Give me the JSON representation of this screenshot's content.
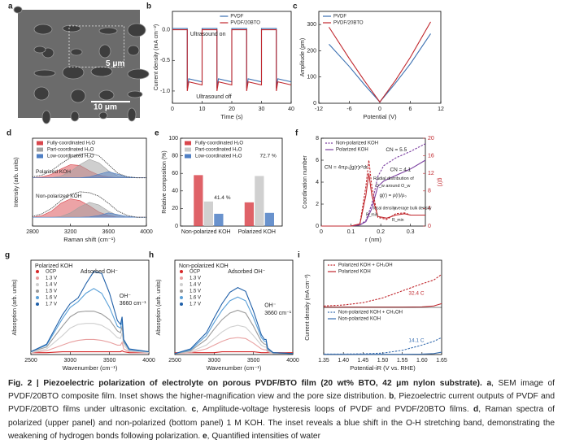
{
  "chart_data": [
    {
      "panel": "a",
      "type": "image",
      "annotations": [
        "5 μm",
        "10 μm"
      ]
    },
    {
      "panel": "b",
      "type": "line",
      "xlabel": "Time (s)",
      "ylabel": "Current density (mA cm⁻²)",
      "xlim": [
        0,
        40
      ],
      "xticks": [
        0,
        10,
        20,
        30,
        40
      ],
      "ylim": [
        -1.2,
        0.3
      ],
      "yticks": [
        {
          "value": -1,
          "label": "-1.0"
        },
        -0.5,
        {
          "value": 0,
          "label": "0.0"
        }
      ],
      "legend": "upper-right",
      "x": [
        0,
        5,
        5,
        5.5,
        10,
        10,
        15,
        15,
        15.5,
        20,
        20,
        25,
        25,
        25.5,
        30,
        30,
        35,
        35,
        35.5,
        40
      ],
      "series": [
        {
          "name": "PVDF",
          "color": "#3a6fb0",
          "values": [
            0.02,
            0.02,
            -0.95,
            -0.8,
            -0.85,
            0.02,
            0.02,
            -0.95,
            -0.8,
            -0.85,
            0.02,
            0.02,
            -0.95,
            -0.8,
            -0.85,
            0.02,
            0.02,
            -0.95,
            -0.8,
            -0.85
          ]
        },
        {
          "name": "PVDF/20BTO",
          "color": "#c0272d",
          "values": [
            0,
            0,
            -1.0,
            -0.85,
            -0.9,
            0,
            0,
            -1.0,
            -0.85,
            -0.9,
            0,
            0,
            -1.0,
            -0.85,
            -0.9,
            0,
            0,
            -1.0,
            -0.85,
            -0.9
          ]
        }
      ],
      "annotations": [
        "Ultrasound on",
        "Ultrasound off"
      ]
    },
    {
      "panel": "c",
      "type": "line",
      "xlabel": "Potential (V)",
      "ylabel": "Amplitude (pm)",
      "xlim": [
        -12,
        12
      ],
      "xticks": [
        -12,
        -6,
        0,
        6,
        12
      ],
      "ylim": [
        0,
        350
      ],
      "yticks": [
        0,
        100,
        200,
        300
      ],
      "legend": "upper-left",
      "x": [
        -10,
        -6,
        -3,
        0,
        3,
        6,
        10
      ],
      "series": [
        {
          "name": "PVDF",
          "color": "#3a6fb0",
          "values": [
            225,
            140,
            70,
            5,
            75,
            150,
            265
          ]
        },
        {
          "name": "PVDF/20BTO",
          "color": "#c0272d",
          "values": [
            290,
            170,
            85,
            5,
            85,
            175,
            310
          ]
        }
      ]
    },
    {
      "panel": "d",
      "type": "raman",
      "xlabel": "Raman shift (cm⁻¹)",
      "ylabel": "Intensity (arb. units)",
      "xlim": [
        2800,
        4000
      ],
      "xticks": [
        2800,
        3200,
        3600,
        4000
      ],
      "ylim": [
        0,
        10
      ],
      "legend": "upper-left",
      "x": [
        2800,
        2900,
        3000,
        3100,
        3200,
        3300,
        3400,
        3500,
        3600,
        3700,
        3800,
        3900,
        4000
      ],
      "components": [
        {
          "name": "Fully-coordinated H₂O",
          "color": "#d9474d"
        },
        {
          "name": "Part-coordinated H₂O",
          "color": "#a0a0a0"
        },
        {
          "name": "Low-coordinated H₂O",
          "color": "#4f7fc4"
        }
      ],
      "spectra": [
        {
          "label": "Polarized KOH",
          "total": [
            5.6,
            5.8,
            6.3,
            7.1,
            7.8,
            8.2,
            8.3,
            8.0,
            7.0,
            6.0,
            5.6,
            5.5,
            5.5
          ],
          "parts": [
            [
              5.5,
              5.6,
              5.9,
              6.5,
              7.0,
              6.9,
              6.3,
              5.8,
              5.6,
              5.5,
              5.5,
              5.5,
              5.5
            ],
            [
              5.5,
              5.5,
              5.5,
              5.7,
              6.2,
              7.0,
              7.6,
              7.2,
              6.3,
              5.7,
              5.5,
              5.5,
              5.5
            ],
            [
              5.5,
              5.5,
              5.5,
              5.5,
              5.5,
              5.5,
              5.6,
              5.9,
              6.2,
              5.9,
              5.6,
              5.5,
              5.5
            ]
          ]
        },
        {
          "label": "Non-polarized KOH",
          "total": [
            1.1,
            1.4,
            2.0,
            2.9,
            3.6,
            3.9,
            3.8,
            3.4,
            2.6,
            1.7,
            1.2,
            1.0,
            1.0
          ],
          "parts": [
            [
              1,
              1.2,
              1.7,
              2.6,
              3.1,
              2.9,
              2.3,
              1.6,
              1.2,
              1,
              1,
              1,
              1
            ],
            [
              1,
              1,
              1,
              1.1,
              1.5,
              2.2,
              2.7,
              2.4,
              1.7,
              1.2,
              1,
              1,
              1
            ],
            [
              1,
              1,
              1,
              1,
              1,
              1,
              1.05,
              1.2,
              1.5,
              1.3,
              1.1,
              1,
              1
            ]
          ]
        }
      ]
    },
    {
      "panel": "e",
      "type": "bar",
      "ylabel": "Relative composition (%)",
      "ylim": [
        0,
        100
      ],
      "yticks": [
        0,
        20,
        40,
        60,
        80,
        100
      ],
      "legend": "upper-left",
      "categories": [
        "Non-polarized KOH",
        "Polarized KOH"
      ],
      "series": [
        {
          "name": "Fully-coordinated H₂O",
          "color": "#d9474d",
          "values": [
            58,
            27
          ]
        },
        {
          "name": "Part-coordinated H₂O",
          "color": "#c8c8c8",
          "values": [
            28,
            57
          ]
        },
        {
          "name": "Low-coordinated H₂O",
          "color": "#4f7fc4",
          "values": [
            14,
            15
          ]
        }
      ],
      "annotations": [
        "41.4 %",
        "72.7 %"
      ]
    },
    {
      "panel": "f",
      "type": "line",
      "xlabel": "r (nm)",
      "ylabel": "Coordination number",
      "y2label": "g(r)",
      "xlim": [
        0,
        0.35
      ],
      "xticks": [
        0,
        0.1,
        0.2,
        0.3
      ],
      "ylim": [
        0,
        8
      ],
      "yticks": [
        0,
        2,
        4,
        6,
        8
      ],
      "y2lim": [
        0,
        20
      ],
      "y2ticks": [
        0,
        4,
        8,
        12,
        16,
        20
      ],
      "legend": "upper-left",
      "series": [
        {
          "name": "Non-polarized KOH",
          "color": "#7b3fa0",
          "dash": true,
          "x": [
            0,
            0.05,
            0.1,
            0.13,
            0.15,
            0.17,
            0.19,
            0.21,
            0.25,
            0.3,
            0.35
          ],
          "values": [
            0,
            0,
            0,
            0.1,
            0.5,
            2.0,
            4.5,
            5.5,
            6.2,
            6.8,
            7.5
          ]
        },
        {
          "name": "Polarized KOH",
          "color": "#7b3fa0",
          "x": [
            0,
            0.05,
            0.1,
            0.13,
            0.15,
            0.17,
            0.19,
            0.21,
            0.25,
            0.3,
            0.35
          ],
          "values": [
            0,
            0,
            0,
            0.1,
            0.4,
            1.6,
            3.6,
            4.1,
            4.6,
            5.2,
            6.0
          ]
        },
        {
          "color": "#c0272d",
          "dash": true,
          "axis": "y2",
          "x": [
            0,
            0.1,
            0.13,
            0.15,
            0.16,
            0.17,
            0.19,
            0.22,
            0.25,
            0.28,
            0.3,
            0.35
          ],
          "values": [
            0,
            0,
            0.5,
            9,
            15,
            9,
            2,
            1.5,
            2.8,
            3.0,
            2.5,
            2.5
          ]
        },
        {
          "color": "#c0272d",
          "axis": "y2",
          "x": [
            0,
            0.1,
            0.13,
            0.15,
            0.16,
            0.17,
            0.19,
            0.22,
            0.25,
            0.28,
            0.3,
            0.35
          ],
          "values": [
            0,
            0,
            0.5,
            7,
            12,
            7,
            2.2,
            1.8,
            2.5,
            2.8,
            2.5,
            2.5
          ]
        }
      ],
      "annotations": [
        "CN = 5.5",
        "CN = 4.1",
        "CN = 4πρ₀∫g(r)r²dr",
        "Radial distribution of",
        "O_w around O_w",
        "g(r) = ρ(r)/ρ₀",
        "local density",
        "average bulk density",
        "R_min",
        "R_min"
      ]
    },
    {
      "panel": "g",
      "type": "line",
      "title": "Polarized KOH",
      "xlabel": "Wavenumber (cm⁻¹)",
      "ylabel": "Absorption (arb. units)",
      "xlim": [
        2500,
        4000
      ],
      "xticks": [
        2500,
        3000,
        3500,
        4000
      ],
      "ylim": [
        0,
        10
      ],
      "legend": "upper-left",
      "legend_marker": "dot",
      "x": [
        2500,
        2700,
        2900,
        3000,
        3100,
        3200,
        3300,
        3400,
        3500,
        3600,
        3640,
        3660,
        3680,
        3750,
        4000
      ],
      "series": [
        {
          "name": "OCP",
          "color": "#d62728",
          "values": [
            0.2,
            0.2,
            0.3,
            0.3,
            0.3,
            0.3,
            0.3,
            0.3,
            0.3,
            0.3,
            0.3,
            0.4,
            0.3,
            0.2,
            0.2
          ]
        },
        {
          "name": "1.3 V",
          "color": "#e8a0a0",
          "values": [
            0.2,
            0.4,
            1.0,
            1.3,
            1.5,
            1.6,
            1.6,
            1.5,
            1.3,
            1.0,
            1.0,
            1.3,
            0.6,
            0.3,
            0.2
          ]
        },
        {
          "name": "1.4 V",
          "color": "#cfcfcf",
          "values": [
            0.2,
            0.6,
            2.0,
            2.8,
            3.2,
            3.3,
            3.3,
            3.1,
            2.6,
            1.8,
            1.7,
            2.3,
            1.0,
            0.4,
            0.2
          ]
        },
        {
          "name": "1.5 V",
          "color": "#9a9a9a",
          "values": [
            0.3,
            0.8,
            3.0,
            4.0,
            4.5,
            4.6,
            4.6,
            4.3,
            3.7,
            2.5,
            2.3,
            3.0,
            1.3,
            0.5,
            0.3
          ]
        },
        {
          "name": "1.6 V",
          "color": "#5aa0d8",
          "values": [
            0.3,
            1.0,
            3.8,
            5.0,
            5.6,
            6.5,
            7.0,
            6.5,
            5.0,
            3.0,
            2.8,
            3.6,
            1.5,
            0.5,
            0.3
          ]
        },
        {
          "name": "1.7 V",
          "color": "#1f5fa8",
          "values": [
            0.3,
            1.1,
            4.2,
            5.4,
            6.0,
            7.5,
            8.8,
            8.6,
            6.5,
            3.6,
            3.2,
            4.0,
            1.6,
            0.6,
            0.3
          ]
        }
      ],
      "annotations": [
        "Adsorbed OH⁻",
        "OH⁻",
        "3660 cm⁻¹"
      ]
    },
    {
      "panel": "h",
      "type": "line",
      "title": "Non-polarized KOH",
      "xlabel": "Wavenumber (cm⁻¹)",
      "ylabel": "Absorption (arb. units)",
      "xlim": [
        2500,
        4000
      ],
      "xticks": [
        2500,
        3000,
        3500,
        4000
      ],
      "ylim": [
        0,
        10
      ],
      "legend": "upper-left",
      "legend_marker": "dot",
      "x": [
        2500,
        2700,
        2900,
        3000,
        3100,
        3200,
        3300,
        3400,
        3500,
        3600,
        3640,
        3660,
        3680,
        3750,
        4000
      ],
      "series": [
        {
          "name": "OCP",
          "color": "#d62728",
          "values": [
            0.2,
            0.2,
            0.2,
            0.2,
            0.3,
            0.3,
            0.3,
            0.3,
            0.3,
            0.2,
            0.2,
            0.2,
            0.2,
            0.2,
            0.2
          ]
        },
        {
          "name": "1.3 V",
          "color": "#e8a0a0",
          "values": [
            0.1,
            0.2,
            0.6,
            1.0,
            1.4,
            1.7,
            1.8,
            1.7,
            1.2,
            0.6,
            0.5,
            0.5,
            0.3,
            0.1,
            0.1
          ]
        },
        {
          "name": "1.4 V",
          "color": "#cfcfcf",
          "values": [
            0.1,
            0.3,
            1.0,
            1.7,
            2.4,
            2.9,
            3.1,
            2.9,
            2.0,
            1.0,
            0.8,
            0.8,
            0.4,
            0.1,
            0.1
          ]
        },
        {
          "name": "1.5 V",
          "color": "#9a9a9a",
          "values": [
            0.1,
            0.4,
            1.6,
            2.7,
            3.7,
            4.4,
            4.7,
            4.4,
            3.0,
            1.4,
            1.1,
            1.1,
            0.5,
            0.2,
            0.1
          ]
        },
        {
          "name": "1.6 V",
          "color": "#5aa0d8",
          "values": [
            0.1,
            0.5,
            2.0,
            3.4,
            4.7,
            5.7,
            6.1,
            5.7,
            3.9,
            1.8,
            1.4,
            1.4,
            0.6,
            0.2,
            0.1
          ]
        },
        {
          "name": "1.7 V",
          "color": "#1f5fa8",
          "values": [
            0.1,
            0.6,
            2.3,
            3.9,
            5.4,
            6.6,
            7.1,
            6.7,
            4.6,
            2.1,
            1.6,
            1.6,
            0.7,
            0.2,
            0.1
          ]
        }
      ],
      "annotations": [
        "Adsorbed OH⁻",
        "OH⁻",
        "3660 cm⁻¹"
      ]
    },
    {
      "panel": "i",
      "type": "split-line",
      "xlabel": "Potential-iR (V vs. RHE)",
      "ylabel": "Current density (mA cm⁻²)",
      "xlim": [
        1.35,
        1.65
      ],
      "xticks": [
        1.35,
        {
          "value": 1.4,
          "label": "1.40"
        },
        1.45,
        {
          "value": 1.5,
          "label": "1.50"
        },
        1.55,
        {
          "value": 1.6,
          "label": "1.60"
        },
        1.65
      ],
      "x": [
        1.35,
        1.4,
        1.45,
        1.5,
        1.55,
        1.6,
        1.63,
        1.65
      ],
      "panels": [
        {
          "ylim": [
            0,
            10
          ],
          "annotation": "32.4 C",
          "series": [
            {
              "name": "Polarized KOH + CH₃OH",
              "color": "#c0272d",
              "dash": true,
              "values": [
                0.3,
                0.5,
                1.0,
                2.0,
                3.5,
                5.0,
                5.8,
                7.0
              ]
            },
            {
              "name": "Polarized KOH",
              "color": "#c0272d",
              "values": [
                0.05,
                0.05,
                0.05,
                0.05,
                0.05,
                0.1,
                0.3,
                0.8
              ]
            }
          ]
        },
        {
          "ylim": [
            0,
            10
          ],
          "annotation": "14.1 C",
          "series": [
            {
              "name": "Non-polarized KOH + CH₃OH",
              "color": "#3a6fb0",
              "dash": true,
              "values": [
                0.1,
                0.1,
                0.15,
                0.3,
                0.9,
                2.0,
                2.8,
                3.6
              ]
            },
            {
              "name": "Non-polarized KOH",
              "color": "#3a6fb0",
              "values": [
                0.05,
                0.05,
                0.05,
                0.05,
                0.05,
                0.1,
                0.2,
                0.5
              ]
            }
          ]
        }
      ]
    }
  ],
  "caption": [
    {
      "text": "Fig. 2 | Piezoelectric polarization of electrolyte on porous PVDF/BTO film (20 wt% BTO, 42 μm nylon substrate).",
      "bold": true
    },
    {
      "text": " ",
      "bold": false
    },
    {
      "text": "a",
      "bold": true
    },
    {
      "text": ", SEM image of PVDF/20BTO composite film. Inset shows the higher-magnification view and the pore size distribution. ",
      "bold": false
    },
    {
      "text": "b",
      "bold": true
    },
    {
      "text": ", Piezoelectric current outputs of PVDF and PVDF/20BTO films under ultrasonic excitation. ",
      "bold": false
    },
    {
      "text": "c",
      "bold": true
    },
    {
      "text": ", Amplitude-voltage hysteresis loops of PVDF and PVDF/20BTO films. ",
      "bold": false
    },
    {
      "text": "d",
      "bold": true
    },
    {
      "text": ", Raman spectra of polarized (upper panel) and non-polarized (bottom panel) 1 M KOH. The inset reveals a blue shift in the O-H stretching band, demonstrating the weakening of hydrogen bonds following polarization. ",
      "bold": false
    },
    {
      "text": "e",
      "bold": true
    },
    {
      "text": ", Quantified intensities of water",
      "bold": false
    }
  ]
}
